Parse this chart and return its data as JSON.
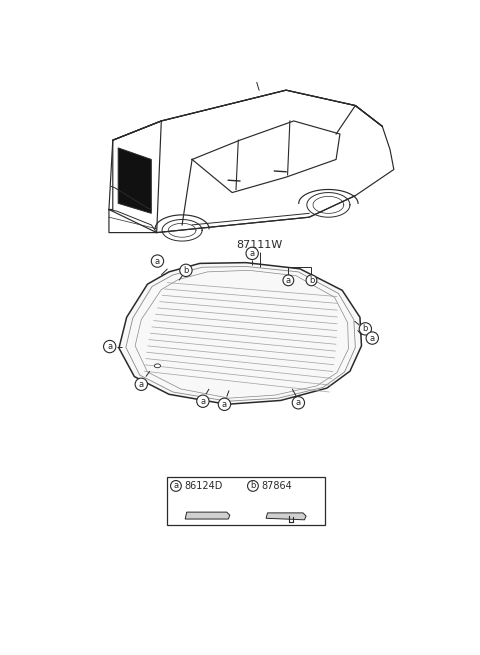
{
  "background_color": "#ffffff",
  "part_label_87111W": "87111W",
  "part_a_code": "86124D",
  "part_b_code": "87864",
  "label_a": "a",
  "label_b": "b",
  "line_color": "#2a2a2a",
  "gray1": "#bbbbbb",
  "gray2": "#888888",
  "gray3": "#555555",
  "gray4": "#cccccc",
  "defrost_color": "#999999",
  "glass_fill": "#f8f8f8",
  "inner_glass_fill": "#f0f0f0"
}
